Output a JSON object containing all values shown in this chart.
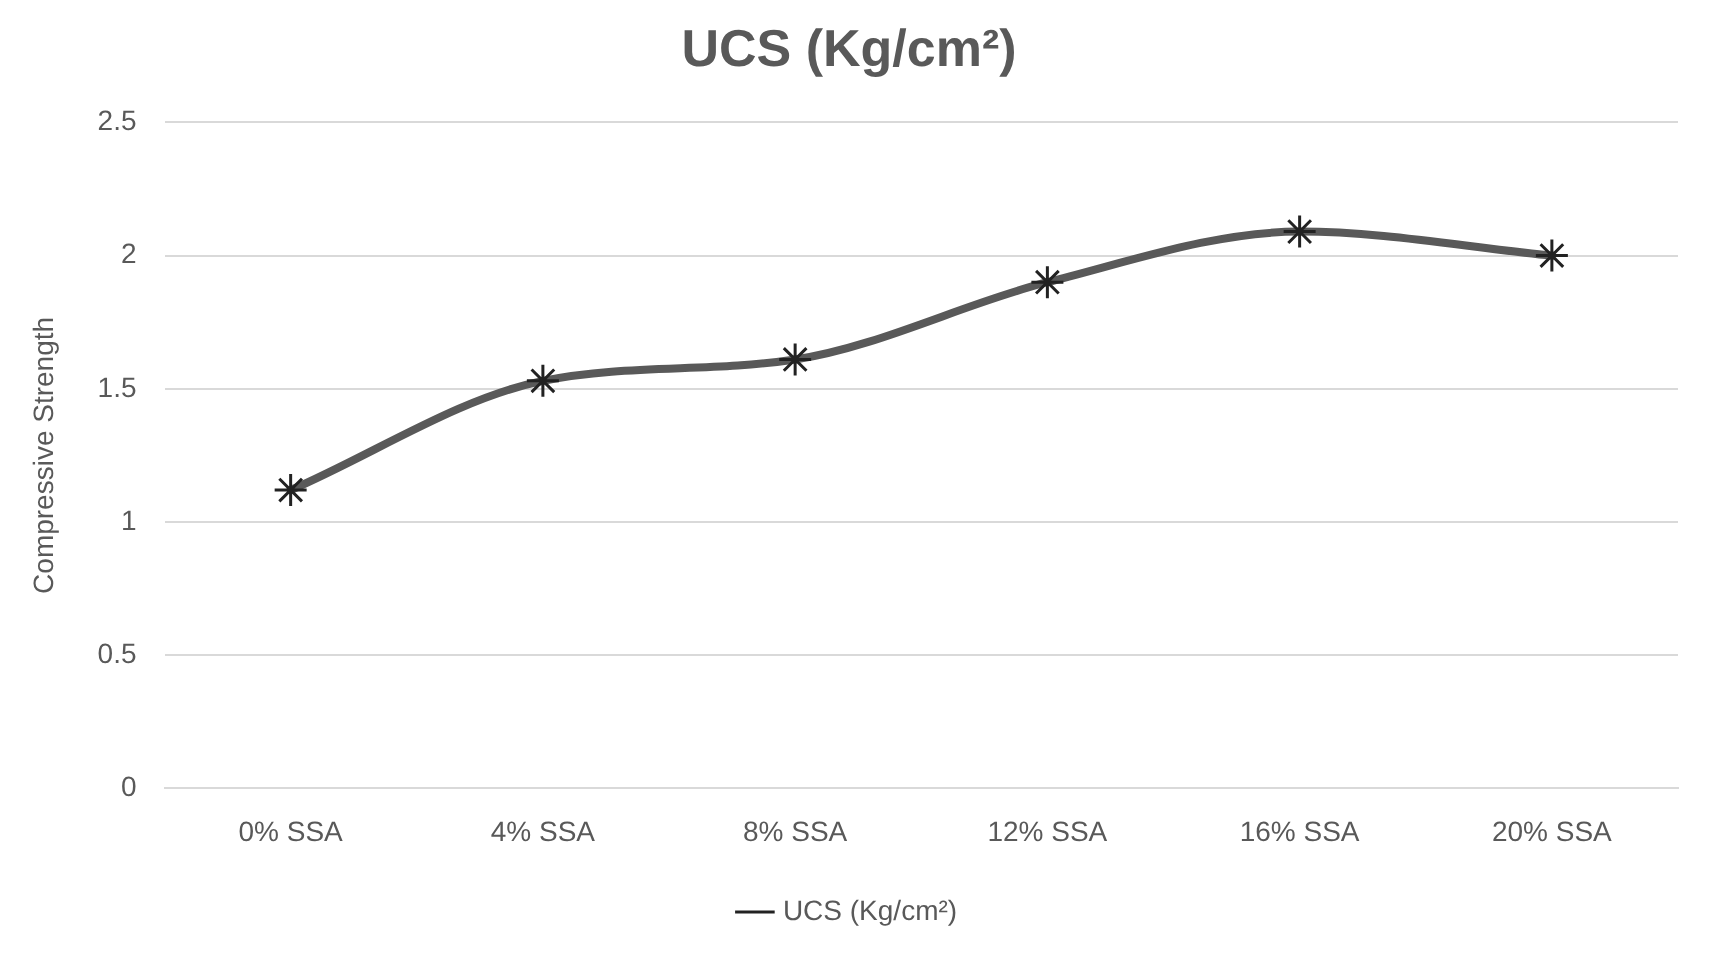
{
  "chart_data": {
    "type": "line",
    "title": "UCS (Kg/cm²)",
    "ylabel": "Compressive Strength",
    "categories": [
      "0% SSA",
      "4% SSA",
      "8% SSA",
      "12% SSA",
      "16% SSA",
      "20% SSA"
    ],
    "series": [
      {
        "name": "UCS (Kg/cm²)",
        "color": "#595959",
        "values": [
          1.12,
          1.53,
          1.61,
          1.9,
          2.09,
          2.0
        ]
      }
    ],
    "ylim": [
      0,
      2.5
    ],
    "yticks": [
      0,
      0.5,
      1,
      1.5,
      2,
      2.5
    ],
    "grid": "y",
    "legend": "bottom",
    "marker": "cross",
    "line_style": "solid"
  }
}
